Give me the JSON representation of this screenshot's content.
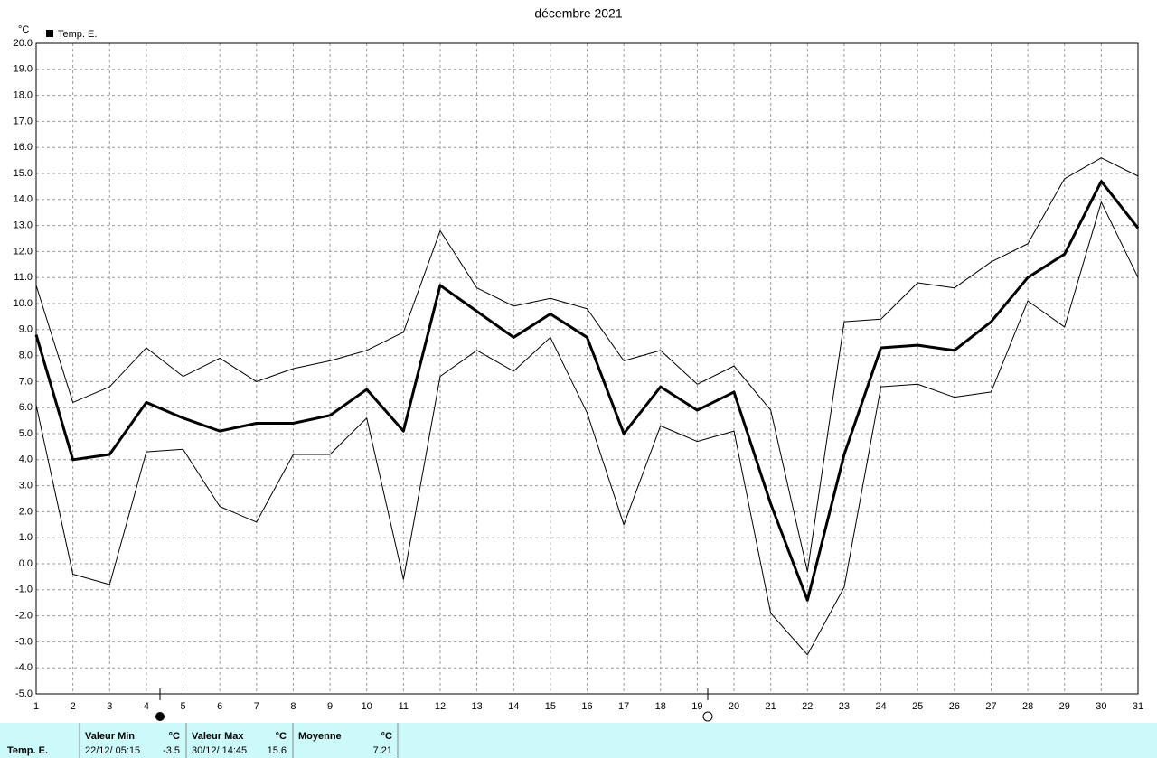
{
  "chart_data": {
    "type": "line",
    "title": "décembre 2021",
    "y_label": "°C",
    "x": [
      1,
      2,
      3,
      4,
      5,
      6,
      7,
      8,
      9,
      10,
      11,
      12,
      13,
      14,
      15,
      16,
      17,
      18,
      19,
      20,
      21,
      22,
      23,
      24,
      25,
      26,
      27,
      28,
      29,
      30,
      31
    ],
    "xlim": [
      1,
      31
    ],
    "xticks": [
      1,
      2,
      3,
      4,
      5,
      6,
      7,
      8,
      9,
      10,
      11,
      12,
      13,
      14,
      15,
      16,
      17,
      18,
      19,
      20,
      21,
      22,
      23,
      24,
      25,
      26,
      27,
      28,
      29,
      30,
      31
    ],
    "ylim": [
      -5,
      20
    ],
    "yticks": [
      {
        "value": -5,
        "label": "-5.0"
      },
      {
        "value": -4,
        "label": "-4.0"
      },
      {
        "value": -3,
        "label": "-3.0"
      },
      {
        "value": -2,
        "label": "-2.0"
      },
      {
        "value": -1,
        "label": "-1.0"
      },
      {
        "value": 0,
        "label": "0.0"
      },
      {
        "value": 1,
        "label": "1.0"
      },
      {
        "value": 2,
        "label": "2.0"
      },
      {
        "value": 3,
        "label": "3.0"
      },
      {
        "value": 4,
        "label": "4.0"
      },
      {
        "value": 5,
        "label": "5.0"
      },
      {
        "value": 6,
        "label": "6.0"
      },
      {
        "value": 7,
        "label": "7.0"
      },
      {
        "value": 8,
        "label": "8.0"
      },
      {
        "value": 9,
        "label": "9.0"
      },
      {
        "value": 10,
        "label": "10.0"
      },
      {
        "value": 11,
        "label": "11.0"
      },
      {
        "value": 12,
        "label": "12.0"
      },
      {
        "value": 13,
        "label": "13.0"
      },
      {
        "value": 14,
        "label": "14.0"
      },
      {
        "value": 15,
        "label": "15.0"
      },
      {
        "value": 16,
        "label": "16.0"
      },
      {
        "value": 17,
        "label": "17.0"
      },
      {
        "value": 18,
        "label": "18.0"
      },
      {
        "value": 19,
        "label": "19.0"
      },
      {
        "value": 20,
        "label": "20.0"
      }
    ],
    "grid": true,
    "series": [
      {
        "name": "Temp. E.",
        "color": "#000000",
        "width": 3,
        "values": [
          8.8,
          4.0,
          4.2,
          6.2,
          5.6,
          5.1,
          5.4,
          5.4,
          5.7,
          6.7,
          5.1,
          10.7,
          9.7,
          8.7,
          9.6,
          8.7,
          5.0,
          6.8,
          5.9,
          6.6,
          2.3,
          -1.4,
          4.2,
          8.3,
          8.4,
          8.2,
          9.3,
          11.0,
          11.9,
          14.7,
          12.9
        ]
      },
      {
        "color": "#000000",
        "width": 1,
        "values": [
          10.7,
          6.2,
          6.8,
          8.3,
          7.2,
          7.9,
          7.0,
          7.5,
          7.8,
          8.2,
          8.9,
          12.8,
          10.6,
          9.9,
          10.2,
          9.8,
          7.8,
          8.2,
          6.9,
          7.6,
          5.9,
          -0.3,
          9.3,
          9.4,
          10.8,
          10.6,
          11.6,
          12.3,
          14.8,
          15.6,
          14.9
        ]
      },
      {
        "color": "#000000",
        "width": 1,
        "values": [
          6.1,
          -0.4,
          -0.8,
          4.3,
          4.4,
          2.2,
          1.6,
          4.2,
          4.2,
          5.6,
          -0.6,
          7.2,
          8.2,
          7.4,
          8.7,
          5.8,
          1.5,
          5.3,
          4.7,
          5.1,
          -1.9,
          -3.5,
          -0.9,
          6.8,
          6.9,
          6.4,
          6.6,
          10.1,
          9.1,
          13.9,
          11.0
        ]
      }
    ]
  },
  "summary": {
    "row_label": "Temp. E.",
    "min": {
      "header": "Valeur Min",
      "unit": "°C",
      "when": "22/12/  05:15",
      "value": -3.5
    },
    "max": {
      "header": "Valeur Max",
      "unit": "°C",
      "when": "30/12/  14:45",
      "value": 15.6
    },
    "mean": {
      "header": "Moyenne",
      "unit": "°C",
      "value": 7.21
    }
  }
}
